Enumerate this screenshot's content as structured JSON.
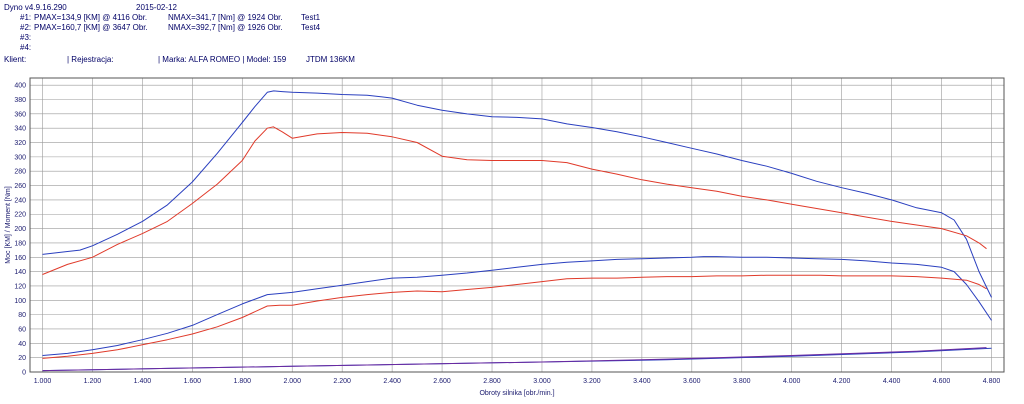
{
  "header": {
    "app_version": "Dyno v4.9.16.290",
    "date": "2015-02-12",
    "runs": [
      {
        "id": "#1:",
        "pmax": "PMAX=134,9 [KM] @ 4116 Obr.",
        "nmax": "NMAX=341,7 [Nm] @ 1924 Obr.",
        "name": "Test1"
      },
      {
        "id": "#2:",
        "pmax": "PMAX=160,7 [KM] @ 3647 Obr.",
        "nmax": "NMAX=392,7 [Nm] @ 1926 Obr.",
        "name": "Test4"
      },
      {
        "id": "#3:"
      },
      {
        "id": "#4:"
      }
    ],
    "client_label": "Klient:",
    "registration_label": "| Rejestracja:",
    "make_label": "| Marka: ALFA ROMEO | Model: 159",
    "engine": "JTDM 136KM"
  },
  "chart_data": {
    "type": "line",
    "xlabel": "Obroty silnika [obr./min.]",
    "ylabel": "Moc [KM] / Moment [Nm]",
    "xlim": [
      950,
      4850
    ],
    "ylim": [
      0,
      410
    ],
    "x_ticks": [
      1000,
      1200,
      1400,
      1600,
      1800,
      2000,
      2200,
      2400,
      2600,
      2800,
      3000,
      3200,
      3400,
      3600,
      3800,
      4000,
      4200,
      4400,
      4600,
      4800
    ],
    "x_tick_labels": [
      "1.000",
      "1.200",
      "1.400",
      "1.600",
      "1.800",
      "2.000",
      "2.200",
      "2.400",
      "2.600",
      "2.800",
      "3.000",
      "3.200",
      "3.400",
      "3.600",
      "3.800",
      "4.000",
      "4.200",
      "4.400",
      "4.600",
      "4.800"
    ],
    "y_ticks": [
      0,
      20,
      40,
      60,
      80,
      100,
      120,
      140,
      160,
      180,
      200,
      220,
      240,
      260,
      280,
      300,
      320,
      340,
      360,
      380,
      400
    ],
    "grid": true,
    "colors": {
      "test1": "#e03a2a",
      "test4": "#2a3fbf",
      "loss": "#6a2aa0",
      "grid": "#9a9a9a",
      "axis_text": "#1a1a6e"
    },
    "series": [
      {
        "key": "test4_torque",
        "color": "#2a3fbf",
        "x": [
          1000,
          1100,
          1150,
          1200,
          1300,
          1400,
          1500,
          1600,
          1700,
          1800,
          1850,
          1900,
          1926,
          1960,
          2000,
          2100,
          2200,
          2300,
          2400,
          2500,
          2600,
          2700,
          2800,
          2900,
          3000,
          3100,
          3200,
          3300,
          3400,
          3500,
          3600,
          3700,
          3800,
          3900,
          4000,
          4100,
          4200,
          4300,
          4400,
          4500,
          4600,
          4650,
          4700,
          4750,
          4800
        ],
        "y": [
          164,
          168,
          170,
          176,
          192,
          210,
          233,
          265,
          305,
          348,
          370,
          390,
          392,
          391,
          390,
          389,
          387,
          386,
          382,
          372,
          365,
          360,
          356,
          355,
          353,
          346,
          341,
          335,
          328,
          320,
          312,
          304,
          295,
          287,
          277,
          266,
          257,
          249,
          240,
          229,
          222,
          212,
          185,
          140,
          104
        ]
      },
      {
        "key": "test1_torque",
        "color": "#e03a2a",
        "x": [
          1000,
          1100,
          1200,
          1300,
          1400,
          1500,
          1600,
          1700,
          1800,
          1850,
          1900,
          1924,
          1960,
          2000,
          2100,
          2200,
          2300,
          2400,
          2500,
          2600,
          2700,
          2800,
          2900,
          3000,
          3100,
          3200,
          3300,
          3400,
          3500,
          3600,
          3700,
          3800,
          3900,
          4000,
          4100,
          4200,
          4300,
          4400,
          4500,
          4600,
          4700,
          4750,
          4780
        ],
        "y": [
          136,
          150,
          160,
          178,
          193,
          210,
          235,
          262,
          295,
          322,
          340,
          342,
          335,
          326,
          332,
          334,
          333,
          328,
          320,
          301,
          296,
          295,
          295,
          295,
          292,
          283,
          276,
          268,
          262,
          257,
          252,
          245,
          240,
          234,
          228,
          222,
          216,
          210,
          205,
          200,
          190,
          180,
          172
        ]
      },
      {
        "key": "test4_power",
        "color": "#2a3fbf",
        "x": [
          1000,
          1100,
          1200,
          1300,
          1400,
          1500,
          1600,
          1700,
          1800,
          1900,
          2000,
          2100,
          2200,
          2300,
          2400,
          2500,
          2600,
          2700,
          2800,
          2900,
          3000,
          3100,
          3200,
          3300,
          3400,
          3500,
          3600,
          3647,
          3700,
          3800,
          3900,
          4000,
          4100,
          4200,
          4300,
          4400,
          4500,
          4600,
          4650,
          4700,
          4750,
          4800
        ],
        "y": [
          23,
          26,
          31,
          37,
          45,
          54,
          65,
          80,
          95,
          108,
          111,
          116,
          121,
          126,
          131,
          132,
          135,
          138,
          142,
          146,
          150,
          153,
          155,
          157,
          158,
          159,
          160,
          161,
          161,
          160,
          160,
          159,
          158,
          157,
          155,
          152,
          150,
          146,
          140,
          122,
          98,
          72
        ]
      },
      {
        "key": "test1_power",
        "color": "#e03a2a",
        "x": [
          1000,
          1100,
          1200,
          1300,
          1400,
          1500,
          1600,
          1700,
          1800,
          1900,
          1950,
          2000,
          2100,
          2200,
          2300,
          2400,
          2500,
          2600,
          2700,
          2800,
          2900,
          3000,
          3100,
          3200,
          3300,
          3400,
          3500,
          3600,
          3700,
          3800,
          3900,
          4000,
          4116,
          4200,
          4300,
          4400,
          4500,
          4600,
          4700,
          4750,
          4780
        ],
        "y": [
          19,
          22,
          26,
          31,
          38,
          45,
          53,
          63,
          76,
          92,
          93,
          93,
          99,
          104,
          108,
          111,
          113,
          112,
          115,
          118,
          122,
          126,
          130,
          131,
          131,
          132,
          133,
          133,
          134,
          134,
          135,
          135,
          135,
          134,
          134,
          134,
          133,
          131,
          128,
          122,
          116
        ]
      },
      {
        "key": "loss_test4",
        "color": "#2a3fbf",
        "x": [
          1000,
          1500,
          2000,
          2500,
          3000,
          3500,
          4000,
          4500,
          4800
        ],
        "y": [
          2,
          5,
          8,
          11,
          14,
          17,
          22,
          28,
          33
        ]
      },
      {
        "key": "loss_test1",
        "color": "#6a2aa0",
        "x": [
          1000,
          1500,
          2000,
          2500,
          3000,
          3500,
          4000,
          4500,
          4780
        ],
        "y": [
          2,
          5,
          8,
          11,
          14,
          18,
          23,
          29,
          34
        ]
      }
    ]
  }
}
